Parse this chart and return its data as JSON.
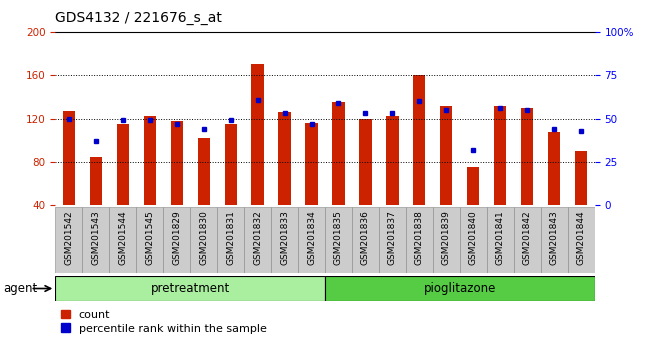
{
  "title": "GDS4132 / 221676_s_at",
  "samples": [
    "GSM201542",
    "GSM201543",
    "GSM201544",
    "GSM201545",
    "GSM201829",
    "GSM201830",
    "GSM201831",
    "GSM201832",
    "GSM201833",
    "GSM201834",
    "GSM201835",
    "GSM201836",
    "GSM201837",
    "GSM201838",
    "GSM201839",
    "GSM201840",
    "GSM201841",
    "GSM201842",
    "GSM201843",
    "GSM201844"
  ],
  "count_values": [
    127,
    85,
    115,
    122,
    118,
    102,
    115,
    170,
    126,
    116,
    135,
    120,
    122,
    160,
    132,
    75,
    132,
    130,
    108,
    90
  ],
  "blue_pcts": [
    50,
    37,
    49,
    49,
    47,
    44,
    49,
    61,
    53,
    47,
    59,
    53,
    53,
    60,
    55,
    32,
    56,
    55,
    44,
    43
  ],
  "group1_label": "pretreatment",
  "group2_label": "pioglitazone",
  "group1_count": 10,
  "group2_count": 10,
  "ylim_left": [
    40,
    200
  ],
  "ylim_right": [
    0,
    100
  ],
  "yticks_left": [
    40,
    80,
    120,
    160,
    200
  ],
  "yticks_right": [
    0,
    25,
    50,
    75,
    100
  ],
  "bar_color": "#cc2200",
  "blue_color": "#0000cc",
  "group1_bg": "#aaeea0",
  "group2_bg": "#55cc44",
  "cell_bg": "#cccccc",
  "agent_label": "agent",
  "legend_count": "count",
  "legend_pct": "percentile rank within the sample",
  "title_fontsize": 10,
  "tick_fontsize": 7.5
}
